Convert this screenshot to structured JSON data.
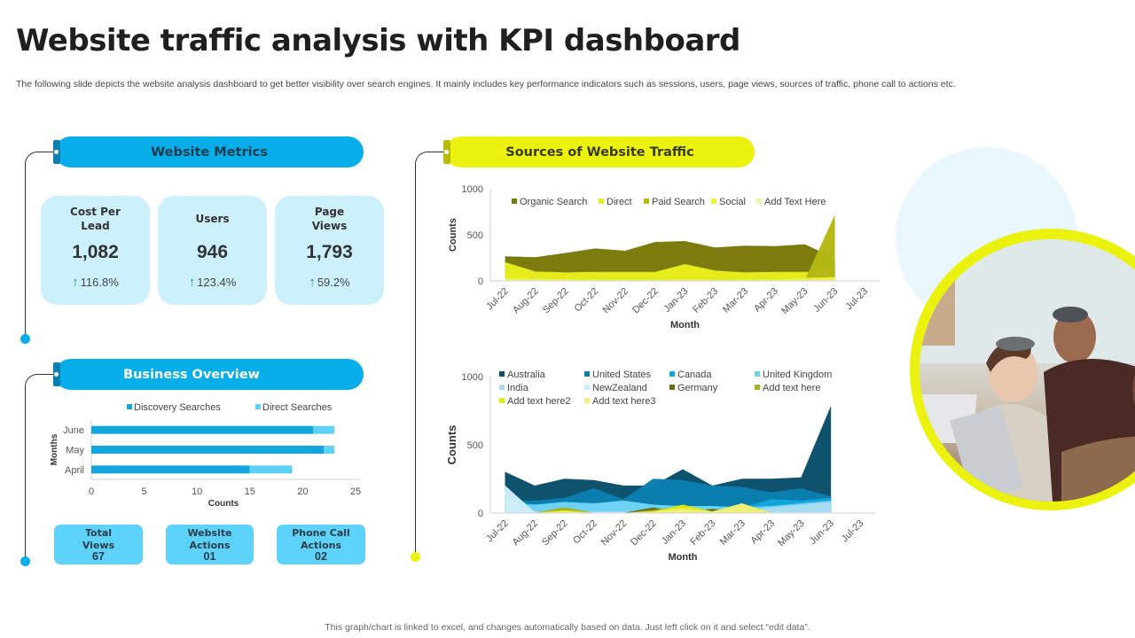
{
  "page": {
    "title": "Website traffic analysis with KPI dashboard",
    "subtitle": "The following slide depicts the website analysis dashboard to get better visibility over search engines. It mainly includes key performance indicators such as sessions, users, page views, sources of traffic, phone call to actions etc.",
    "footer": "This graph/chart is linked to excel, and changes automatically based on data. Just left click on it and select “edit data”."
  },
  "sections": {
    "website_metrics": "Website Metrics",
    "business_overview": "Business Overview",
    "sources_traffic": "Sources of Website Traffic"
  },
  "metrics": [
    {
      "label": "Cost Per Lead",
      "value": "1,082",
      "change": "116.8%",
      "trend": "up"
    },
    {
      "label": "Users",
      "value": "946",
      "change": "123.4%",
      "trend": "up"
    },
    {
      "label": "Page Views",
      "value": "1,793",
      "change": "59.2%",
      "trend": "up"
    }
  ],
  "stats": [
    {
      "label_line1": "Total",
      "label_line2": "Views",
      "value": "67"
    },
    {
      "label_line1": "Website",
      "label_line2": "Actions",
      "value": "01"
    },
    {
      "label_line1": "Phone Call",
      "label_line2": "Actions",
      "value": "02"
    }
  ],
  "icons": {
    "trend": "arrow-up-icon",
    "photo": "team-working-on-laptops-photo"
  },
  "colors": {
    "accent_blue": "#08aeea",
    "accent_yellow": "#eaf20d",
    "card_bg": "#cdf0fd",
    "stat_bg": "#5dd3fb",
    "trend_up": "#1aa260"
  },
  "chart_data": [
    {
      "id": "business_overview",
      "type": "bar",
      "orientation": "horizontal",
      "stacked": true,
      "categories": [
        "April",
        "May",
        "June"
      ],
      "series": [
        {
          "name": "Discovery Searches",
          "color": "#12a6dc",
          "values": [
            15,
            22,
            21
          ]
        },
        {
          "name": "Direct Searches",
          "color": "#5fd1f7",
          "values": [
            4,
            1,
            2
          ]
        }
      ],
      "xlabel": "Counts",
      "ylabel": "Months",
      "xlim": [
        0,
        25
      ],
      "xticks": [
        0,
        5,
        10,
        15,
        20,
        25
      ],
      "legend": "top",
      "grid": false
    },
    {
      "id": "sources_traffic",
      "type": "area",
      "stacked": false,
      "x": [
        "Jul-22",
        "Aug-22",
        "Sep-22",
        "Oct-22",
        "Nov-22",
        "Dec-22",
        "Jan-23",
        "Feb-23",
        "Mar-23",
        "Apr-23",
        "May-23",
        "Jun-23",
        "Jul-23"
      ],
      "series": [
        {
          "name": "Organic Search",
          "color": "#7a7a0a",
          "values": [
            265,
            255,
            300,
            350,
            325,
            420,
            430,
            360,
            380,
            375,
            395,
            245,
            null
          ]
        },
        {
          "name": "Direct",
          "color": "#e7ef1c",
          "values": [
            200,
            100,
            90,
            95,
            95,
            95,
            180,
            110,
            90,
            95,
            95,
            100,
            null
          ]
        },
        {
          "name": "Paid Search",
          "color": "#b5b915",
          "values": [
            0,
            0,
            0,
            0,
            0,
            0,
            0,
            0,
            0,
            0,
            0,
            710,
            null
          ]
        },
        {
          "name": "Social",
          "color": "#eef23a",
          "values": [
            30,
            20,
            15,
            10,
            10,
            10,
            10,
            10,
            10,
            10,
            30,
            40,
            null
          ]
        },
        {
          "name": "Add Text Here",
          "color": "#f3f6a6",
          "values": [
            10,
            10,
            10,
            5,
            5,
            5,
            5,
            5,
            5,
            5,
            10,
            10,
            null
          ]
        }
      ],
      "xlabel": "Month",
      "ylabel": "Counts",
      "ylim": [
        0,
        1000
      ],
      "yticks": [
        0,
        500,
        1000
      ],
      "legend": "top",
      "grid": false
    },
    {
      "id": "traffic_by_country",
      "type": "area",
      "stacked": false,
      "x": [
        "Jul-22",
        "Aug-22",
        "Sep-22",
        "Oct-22",
        "Nov-22",
        "Dec-22",
        "Jan-23",
        "Feb-23",
        "Mar-23",
        "Apr-23",
        "May-23",
        "Jun-23",
        "Jul-23"
      ],
      "series": [
        {
          "name": "Australia",
          "color": "#0b4f6c",
          "values": [
            300,
            200,
            250,
            240,
            200,
            200,
            320,
            200,
            250,
            250,
            260,
            780,
            null
          ]
        },
        {
          "name": "United States",
          "color": "#0a7fb0",
          "values": [
            90,
            90,
            110,
            180,
            100,
            250,
            240,
            200,
            190,
            150,
            180,
            120,
            null
          ]
        },
        {
          "name": "Canada",
          "color": "#12a6dc",
          "values": [
            100,
            60,
            70,
            70,
            80,
            50,
            40,
            40,
            40,
            100,
            90,
            110,
            null
          ]
        },
        {
          "name": "United Kingdom",
          "color": "#6fd3f5",
          "values": [
            60,
            60,
            80,
            70,
            90,
            60,
            50,
            50,
            40,
            50,
            70,
            90,
            null
          ]
        },
        {
          "name": "India",
          "color": "#a9dcf2",
          "values": [
            100,
            10,
            20,
            10,
            10,
            10,
            20,
            20,
            20,
            40,
            60,
            80,
            null
          ]
        },
        {
          "name": "NewZealand",
          "color": "#cdeffb",
          "values": [
            200,
            5,
            5,
            5,
            5,
            5,
            5,
            5,
            5,
            5,
            5,
            5,
            null
          ]
        },
        {
          "name": "Germany",
          "color": "#6b6b12",
          "values": [
            0,
            0,
            30,
            0,
            0,
            40,
            0,
            30,
            0,
            0,
            0,
            0,
            null
          ]
        },
        {
          "name": "Add text here",
          "color": "#aab21b",
          "values": [
            0,
            0,
            40,
            0,
            0,
            20,
            50,
            10,
            70,
            0,
            0,
            0,
            null
          ]
        },
        {
          "name": "Add text here2",
          "color": "#e2ea12",
          "values": [
            0,
            0,
            20,
            0,
            0,
            10,
            60,
            10,
            30,
            0,
            0,
            0,
            null
          ]
        },
        {
          "name": "Add text here3",
          "color": "#eef27a",
          "values": [
            0,
            0,
            10,
            0,
            0,
            10,
            30,
            10,
            70,
            0,
            0,
            0,
            null
          ]
        }
      ],
      "xlabel": "Month",
      "ylabel": "Counts",
      "ylim": [
        0,
        1000
      ],
      "yticks": [
        0,
        500,
        1000
      ],
      "legend": "top",
      "grid": false
    }
  ]
}
